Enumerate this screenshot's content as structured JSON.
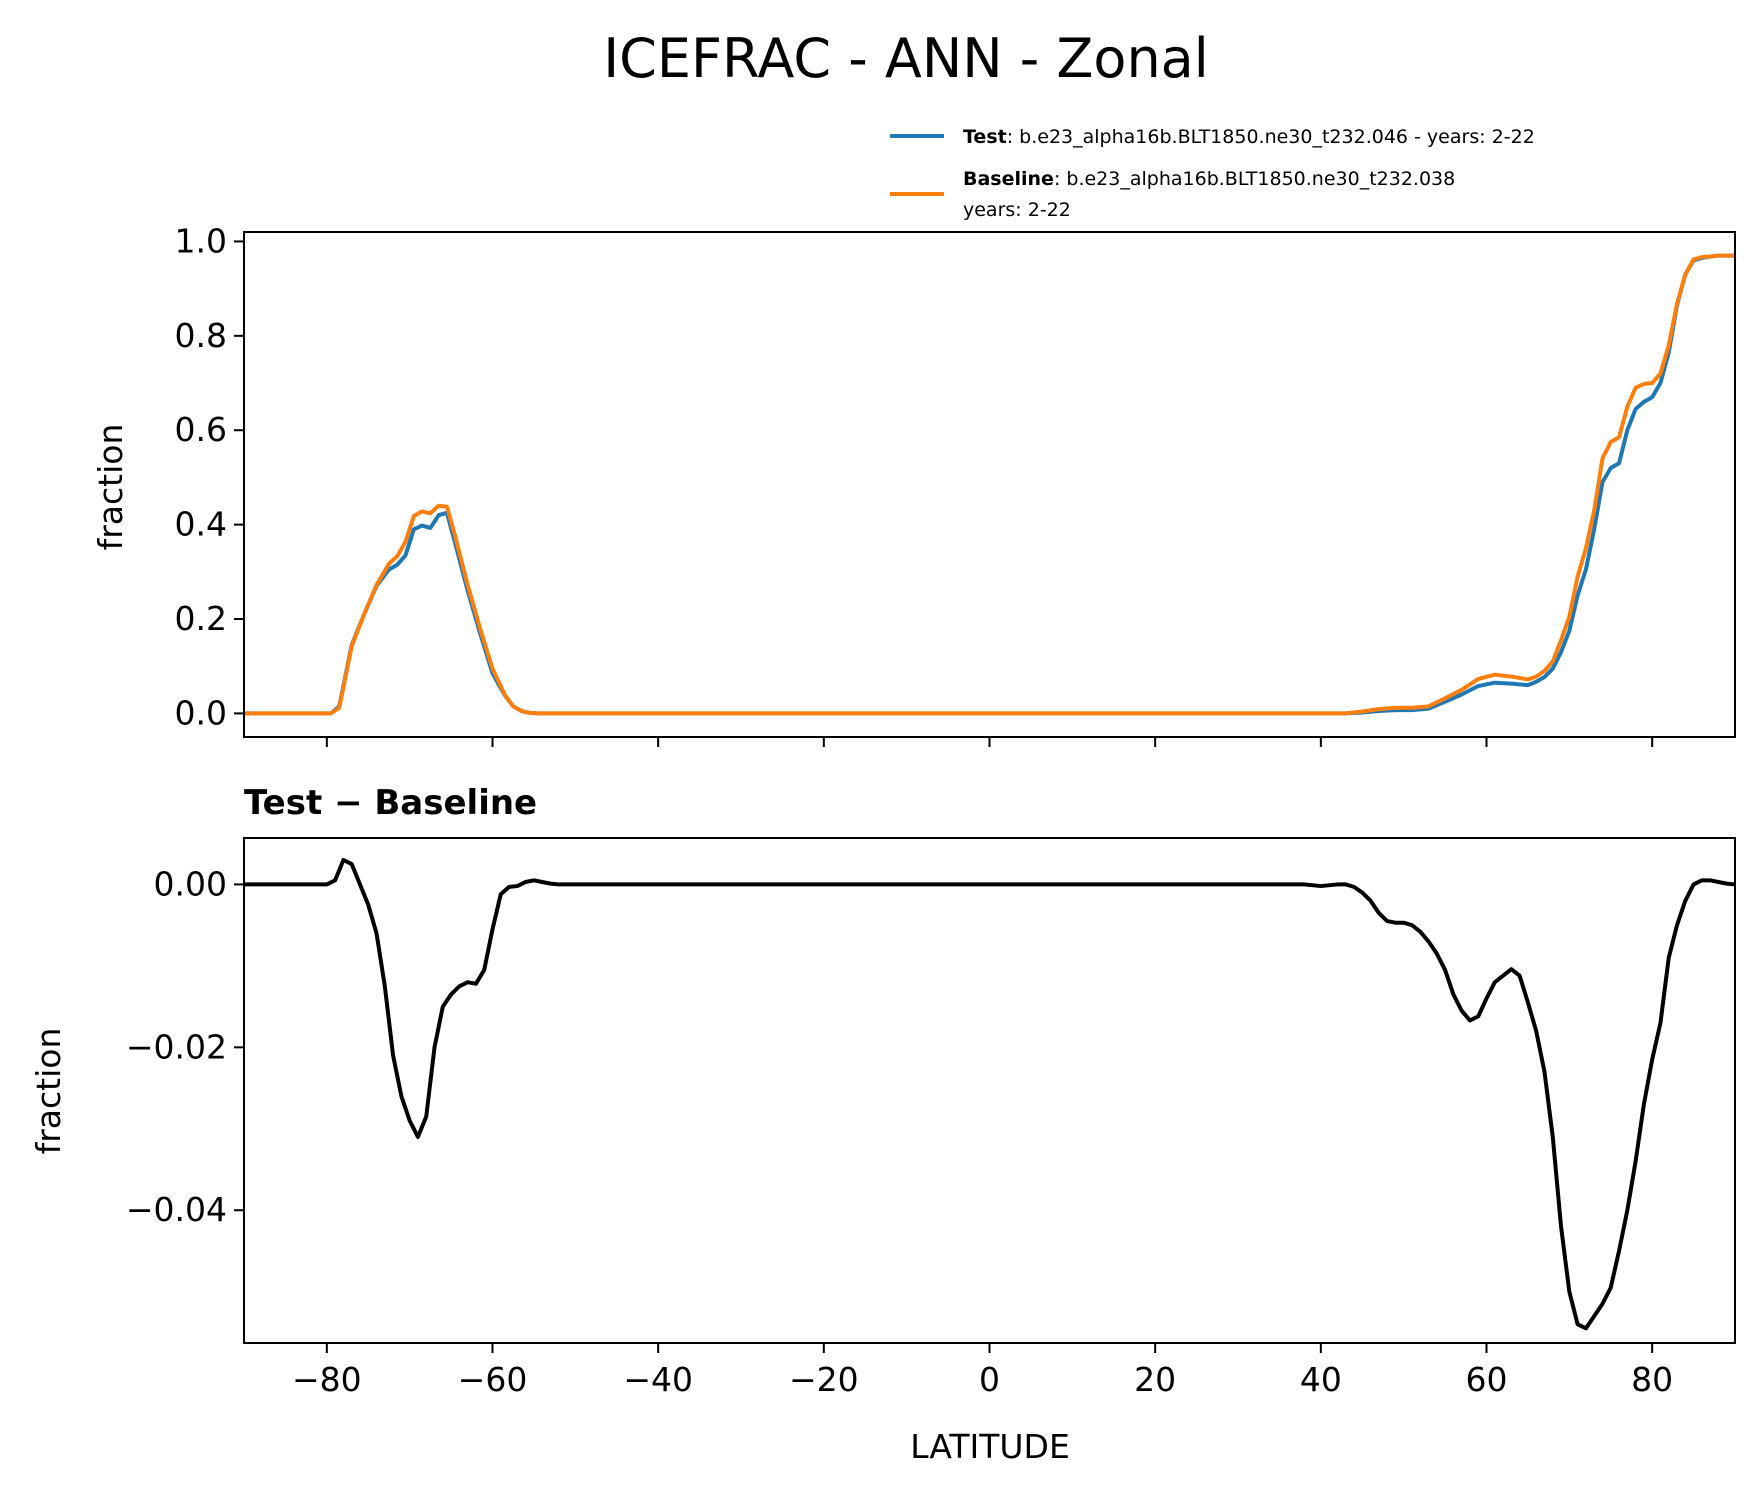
{
  "chart_data": [
    {
      "type": "line",
      "title": "ICEFRAC - ANN - Zonal",
      "xlabel": "",
      "ylabel": "fraction",
      "xlim": [
        -90,
        90
      ],
      "ylim": [
        -0.05,
        1.02
      ],
      "yticks": [
        "0.0",
        "0.2",
        "0.4",
        "0.6",
        "0.8",
        "1.0"
      ],
      "ytick_values": [
        0.0,
        0.2,
        0.4,
        0.6,
        0.8,
        1.0
      ],
      "xtick_values": [
        -80,
        -60,
        -40,
        -20,
        0,
        20,
        40,
        60,
        80
      ],
      "legend_position": "top-right",
      "legend": [
        {
          "bold": "Test",
          "text": ": b.e23_alpha16b.BLT1850.ne30_t232.046 - years: 2-22",
          "text2": "",
          "color": "#1f77b4"
        },
        {
          "bold": "Baseline",
          "text": ": b.e23_alpha16b.BLT1850.ne30_t232.038",
          "text2": "years: 2-22",
          "color": "#ff7f0e"
        }
      ],
      "series": [
        {
          "color": "#1f77b4",
          "x": [
            -90,
            -79.5,
            -78.5,
            -77,
            -75.5,
            -74,
            -72.5,
            -71.5,
            -70.5,
            -69.5,
            -68.5,
            -67.5,
            -66.5,
            -65.5,
            -64.5,
            -63,
            -61.5,
            -60,
            -58.5,
            -57.5,
            -56.5,
            -55.5,
            -54.5,
            -52,
            -50,
            0,
            40,
            43,
            45,
            47,
            49,
            51,
            53,
            55,
            57,
            59,
            61,
            63,
            65,
            66,
            67,
            68,
            69,
            70,
            71,
            72,
            73,
            74,
            75,
            76,
            77,
            78,
            79,
            80,
            81,
            82,
            83,
            84,
            85,
            86,
            87,
            88,
            90
          ],
          "y": [
            0.0,
            0.0,
            0.015,
            0.145,
            0.21,
            0.27,
            0.305,
            0.315,
            0.335,
            0.39,
            0.398,
            0.393,
            0.42,
            0.425,
            0.36,
            0.26,
            0.17,
            0.085,
            0.038,
            0.015,
            0.005,
            0.001,
            0.0,
            0.0,
            0.0,
            0.0,
            0.0,
            0.0,
            0.002,
            0.005,
            0.007,
            0.007,
            0.01,
            0.025,
            0.04,
            0.058,
            0.065,
            0.063,
            0.06,
            0.067,
            0.077,
            0.095,
            0.13,
            0.175,
            0.25,
            0.305,
            0.39,
            0.49,
            0.52,
            0.53,
            0.6,
            0.645,
            0.66,
            0.67,
            0.7,
            0.765,
            0.865,
            0.93,
            0.96,
            0.965,
            0.968,
            0.97,
            0.97
          ]
        },
        {
          "color": "#ff7f0e",
          "x": [
            -90,
            -79.5,
            -78.5,
            -77,
            -75.5,
            -74,
            -72.5,
            -71.5,
            -70.5,
            -69.5,
            -68.5,
            -67.5,
            -66.5,
            -65.5,
            -64.5,
            -63,
            -61.5,
            -60,
            -58.5,
            -57.5,
            -56.5,
            -55.5,
            -54.5,
            -52,
            -50,
            0,
            40,
            43,
            45,
            47,
            49,
            51,
            53,
            55,
            57,
            59,
            61,
            63,
            65,
            66,
            67,
            68,
            69,
            70,
            71,
            72,
            73,
            74,
            75,
            76,
            77,
            78,
            79,
            80,
            81,
            82,
            83,
            84,
            85,
            86,
            87,
            88,
            90
          ],
          "y": [
            0.0,
            0.0,
            0.012,
            0.142,
            0.21,
            0.272,
            0.317,
            0.333,
            0.364,
            0.418,
            0.428,
            0.424,
            0.44,
            0.438,
            0.375,
            0.272,
            0.18,
            0.095,
            0.039,
            0.015,
            0.005,
            0.001,
            0.0,
            0.0,
            0.0,
            0.0,
            0.0,
            0.0,
            0.004,
            0.009,
            0.012,
            0.012,
            0.015,
            0.032,
            0.05,
            0.073,
            0.082,
            0.078,
            0.072,
            0.078,
            0.09,
            0.11,
            0.155,
            0.205,
            0.29,
            0.35,
            0.43,
            0.54,
            0.575,
            0.585,
            0.65,
            0.69,
            0.698,
            0.7,
            0.72,
            0.78,
            0.868,
            0.93,
            0.962,
            0.967,
            0.968,
            0.97,
            0.97
          ]
        }
      ]
    },
    {
      "type": "line",
      "title": "Test − Baseline",
      "xlabel": "LATITUDE",
      "ylabel": "fraction",
      "xlim": [
        -90,
        90
      ],
      "ylim": [
        -0.0563,
        0.0057
      ],
      "yticks": [
        "0.00",
        "−0.02",
        "−0.04"
      ],
      "ytick_values": [
        0.0,
        -0.02,
        -0.04
      ],
      "xticks": [
        "−80",
        "−60",
        "−40",
        "−20",
        "0",
        "20",
        "40",
        "60",
        "80"
      ],
      "xtick_values": [
        -80,
        -60,
        -40,
        -20,
        0,
        20,
        40,
        60,
        80
      ],
      "series": [
        {
          "color": "#000000",
          "x": [
            -90,
            -80,
            -79,
            -78,
            -77,
            -76,
            -75,
            -74,
            -73,
            -72,
            -71,
            -70,
            -69,
            -68,
            -67,
            -66,
            -65,
            -64,
            -63,
            -62,
            -61,
            -60,
            -59,
            -58,
            -57,
            -56,
            -55,
            -54,
            -53,
            -52,
            0,
            38,
            40,
            42,
            43,
            44,
            45,
            46,
            47,
            48,
            49,
            50,
            51,
            52,
            53,
            54,
            55,
            56,
            57,
            58,
            59,
            60,
            61,
            62,
            63,
            64,
            65,
            66,
            67,
            68,
            69,
            70,
            71,
            72,
            73,
            74,
            75,
            76,
            77,
            78,
            79,
            80,
            81,
            82,
            83,
            84,
            85,
            86,
            87,
            88,
            89,
            90
          ],
          "y": [
            0.0,
            0.0,
            0.0005,
            0.003,
            0.0025,
            0.0,
            -0.0025,
            -0.006,
            -0.0125,
            -0.021,
            -0.026,
            -0.029,
            -0.031,
            -0.0285,
            -0.02,
            -0.015,
            -0.0135,
            -0.0125,
            -0.012,
            -0.0122,
            -0.0105,
            -0.0055,
            -0.0012,
            -0.0003,
            -0.0002,
            0.0003,
            0.0005,
            0.0003,
            0.0001,
            0.0,
            0.0,
            0.0,
            -0.0002,
            0.0,
            0.0,
            -0.0003,
            -0.001,
            -0.002,
            -0.0035,
            -0.0045,
            -0.0047,
            -0.0047,
            -0.005,
            -0.0058,
            -0.007,
            -0.0085,
            -0.0105,
            -0.0135,
            -0.0155,
            -0.0167,
            -0.0162,
            -0.014,
            -0.012,
            -0.0112,
            -0.0104,
            -0.0112,
            -0.0145,
            -0.018,
            -0.023,
            -0.031,
            -0.042,
            -0.05,
            -0.054,
            -0.0545,
            -0.053,
            -0.0515,
            -0.0495,
            -0.045,
            -0.04,
            -0.034,
            -0.027,
            -0.0215,
            -0.017,
            -0.009,
            -0.005,
            -0.002,
            0.0,
            0.0005,
            0.0005,
            0.0003,
            0.0001,
            0.0
          ]
        }
      ]
    }
  ]
}
